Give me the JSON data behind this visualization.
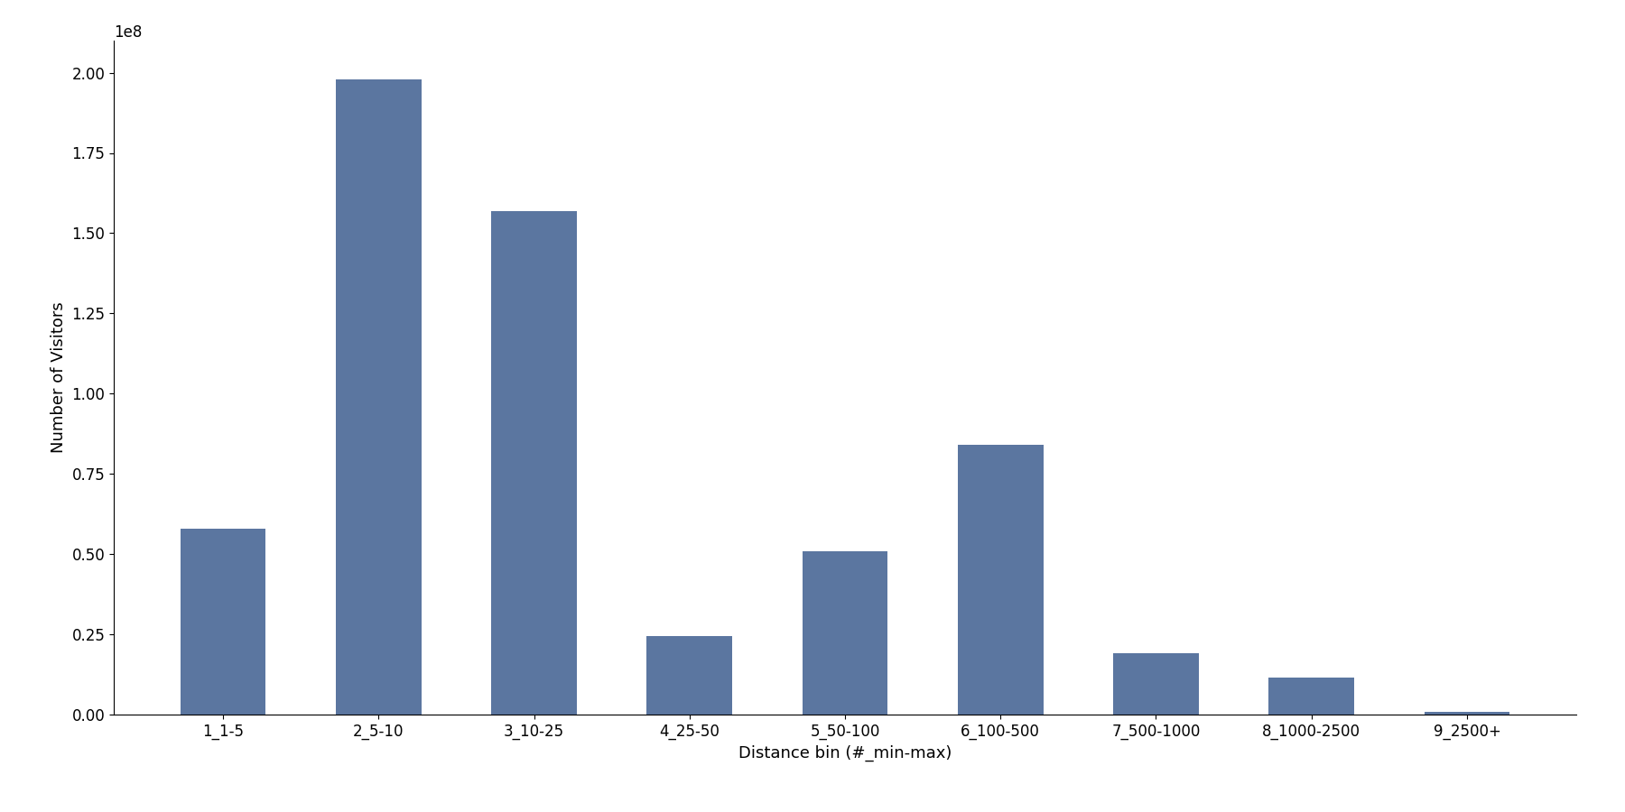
{
  "categories": [
    "1_1-5",
    "2_5-10",
    "3_10-25",
    "4_25-50",
    "5_50-100",
    "6_100-500",
    "7_500-1000",
    "8_1000-2500",
    "9_2500+"
  ],
  "values": [
    58000000.0,
    198000000.0,
    157000000.0,
    24500000.0,
    51000000.0,
    84000000.0,
    19000000.0,
    11500000.0,
    800000.0
  ],
  "bar_color": "#5b76a0",
  "xlabel": "Distance bin (#_min-max)",
  "ylabel": "Number of Visitors",
  "ylim": [
    0,
    210000000.0
  ],
  "background_color": "#ffffff",
  "figsize": [
    18.0,
    9.0
  ],
  "dpi": 100,
  "bar_width": 0.55,
  "tick_fontsize": 12,
  "label_fontsize": 13
}
